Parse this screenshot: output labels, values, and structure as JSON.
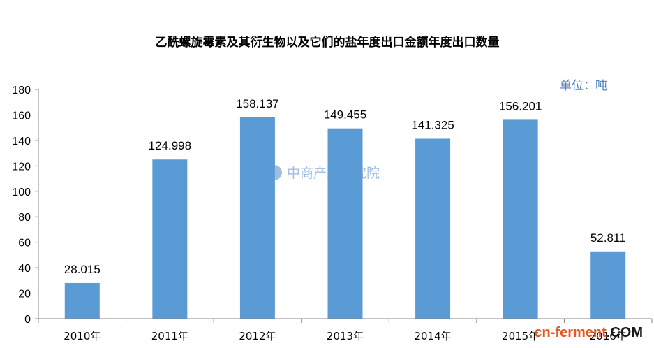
{
  "chart_data": {
    "type": "bar",
    "title": "乙酰螺旋霉素及其衍生物以及它们的盐年度出口金额年度出口数量",
    "unit_label": "单位：吨",
    "categories": [
      "2010年",
      "2011年",
      "2012年",
      "2013年",
      "2014年",
      "2015年",
      "2016年"
    ],
    "values": [
      28.015,
      124.998,
      158.137,
      149.455,
      141.325,
      156.201,
      52.811
    ],
    "data_labels": [
      "28.015",
      "124.998",
      "158.137",
      "149.455",
      "141.325",
      "156.201",
      "52.811"
    ],
    "ylim": [
      0,
      180
    ],
    "yticks": [
      0,
      20,
      40,
      60,
      80,
      100,
      120,
      140,
      160,
      180
    ],
    "grid": false,
    "bar_color": "#5b9bd5"
  },
  "watermark": {
    "text": "中商产业研究院",
    "color": "#7fa8d6"
  },
  "site_logo": {
    "text_main": "cn-ferment",
    "text_suffix": ".COM",
    "main_color": "#e8571e",
    "suffix_color": "#1a1a1a"
  }
}
